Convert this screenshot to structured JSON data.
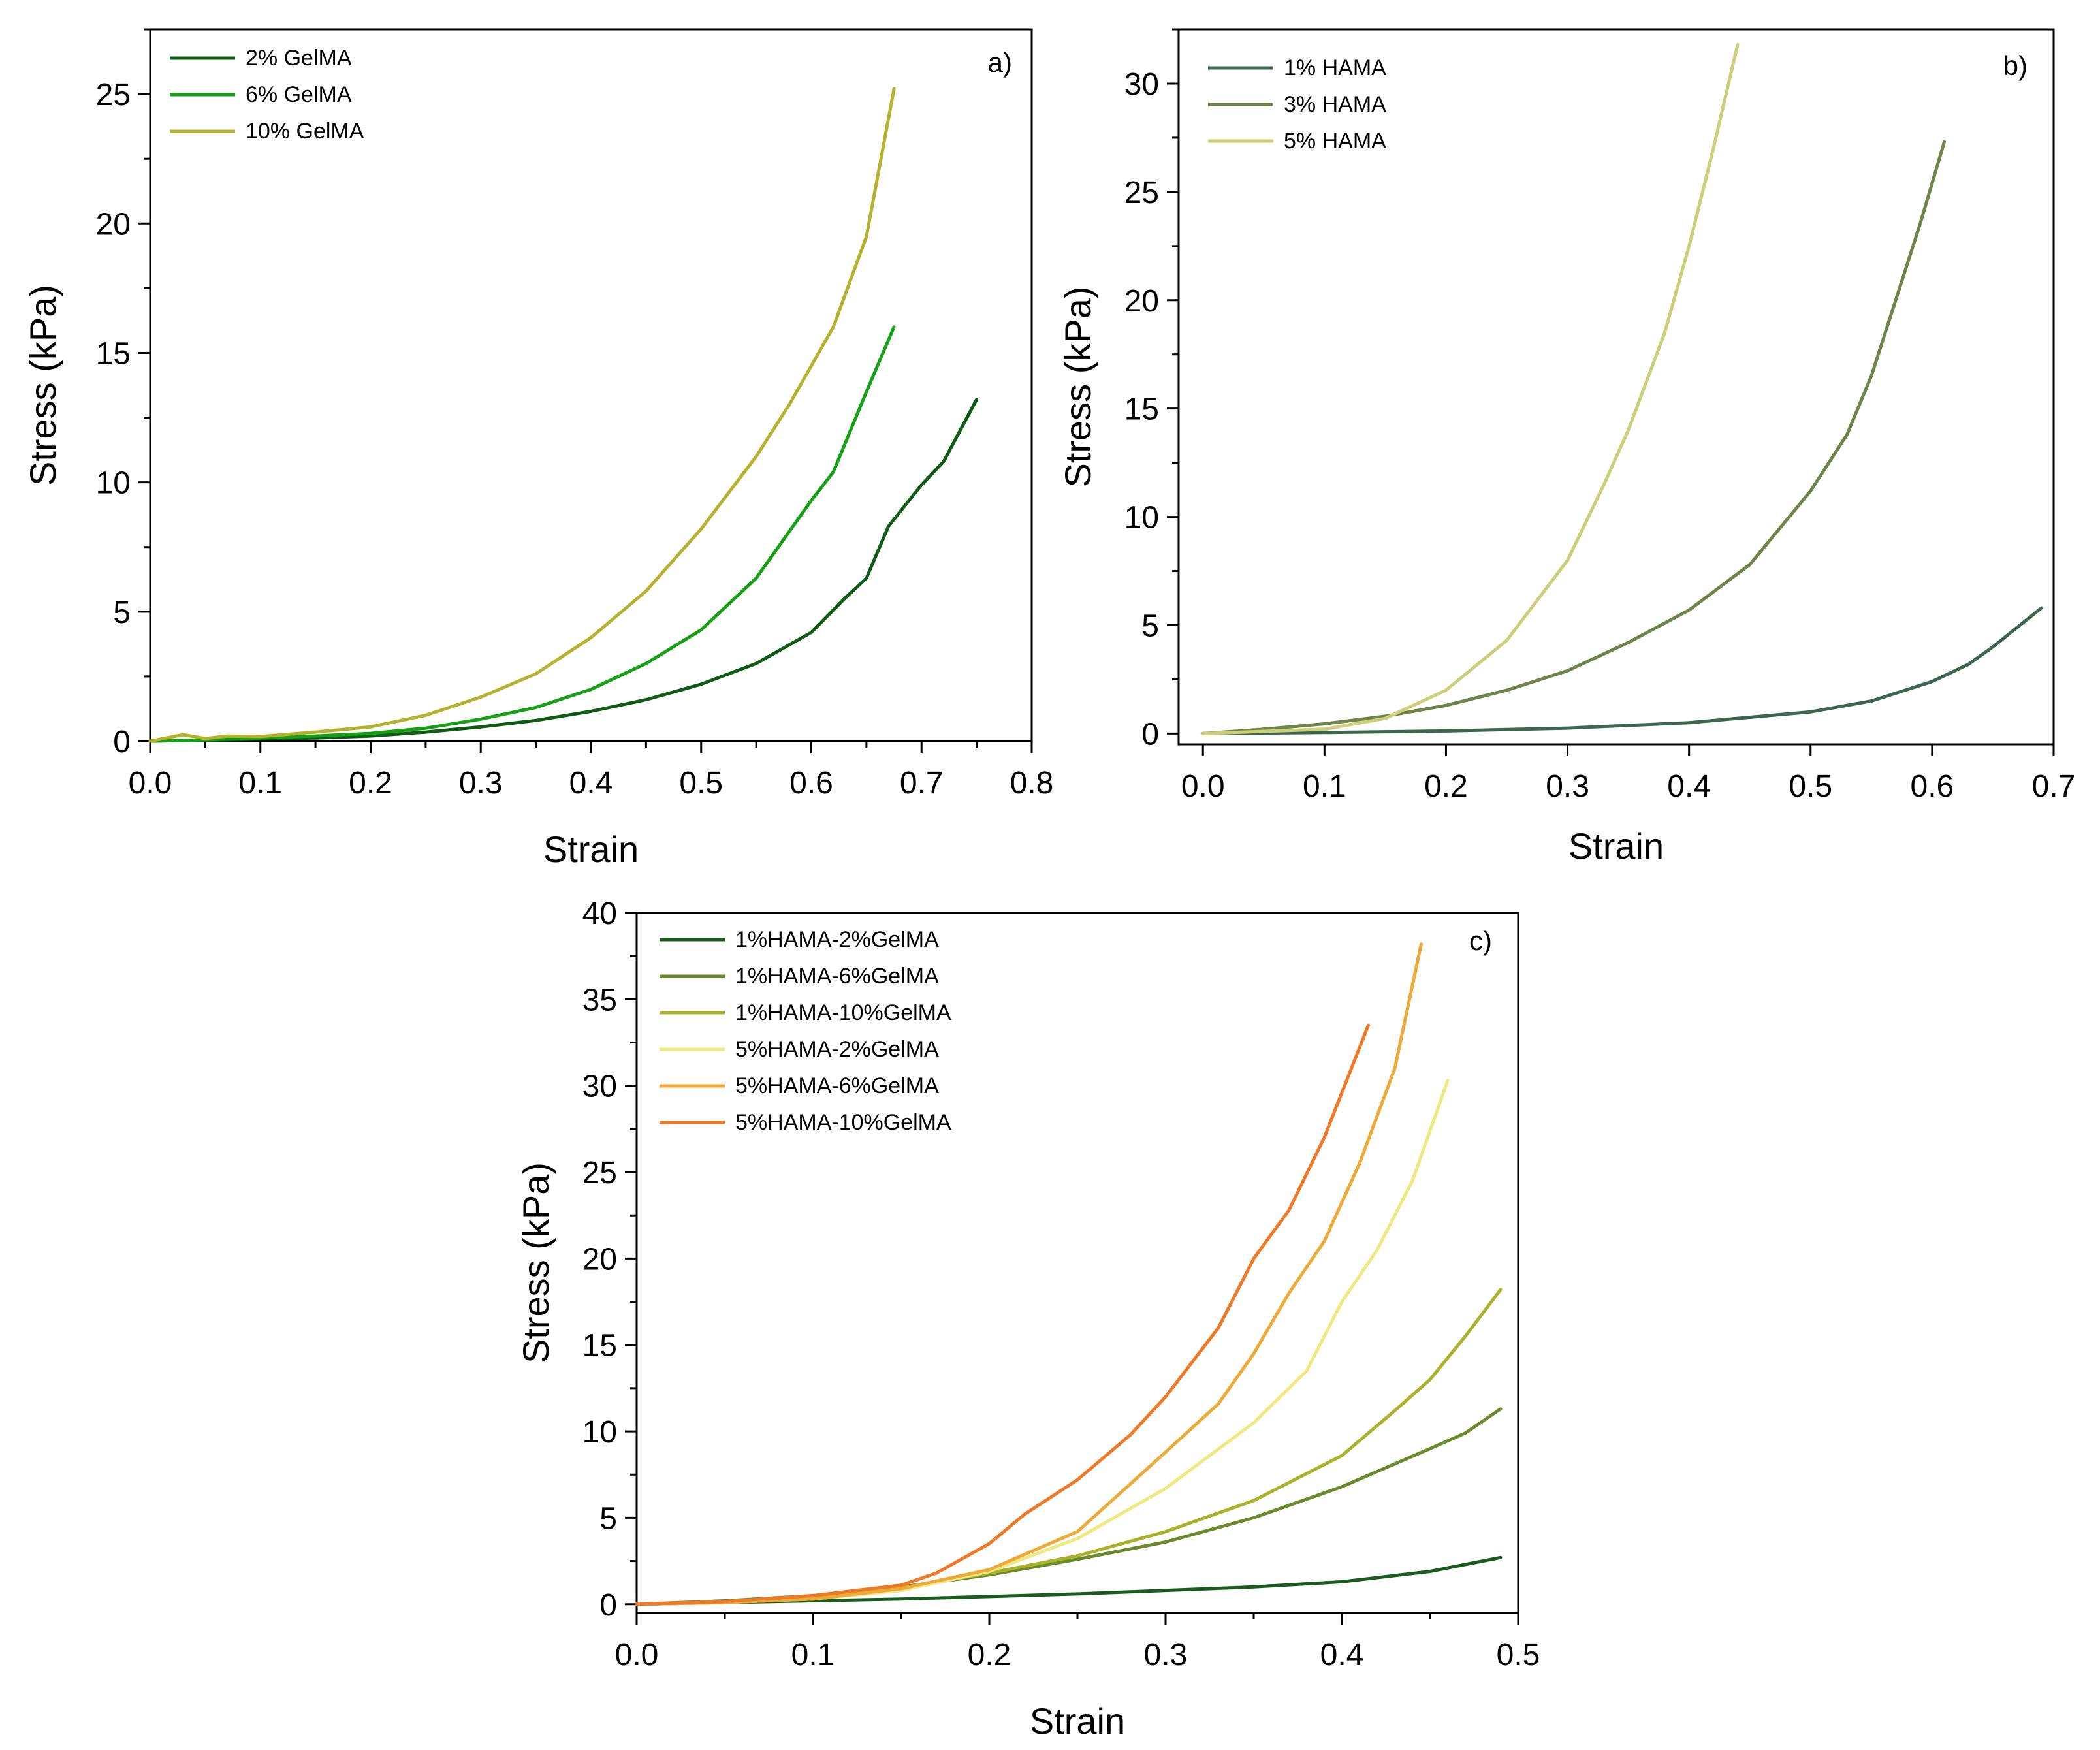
{
  "chart_data": [
    {
      "id": "a",
      "type": "line",
      "panel_label": "a)",
      "xlabel": "Strain",
      "ylabel": "Stress (kPa)",
      "xlim": [
        0,
        0.8
      ],
      "ylim": [
        0,
        27.5
      ],
      "xticks": [
        "0.0",
        "0.1",
        "0.2",
        "0.3",
        "0.4",
        "0.5",
        "0.6",
        "0.7",
        "0.8"
      ],
      "xtick_values": [
        0,
        0.1,
        0.2,
        0.3,
        0.4,
        0.5,
        0.6,
        0.7,
        0.8
      ],
      "yticks": [
        "0",
        "5",
        "10",
        "15",
        "20",
        "25"
      ],
      "ytick_values": [
        0,
        5,
        10,
        15,
        20,
        25
      ],
      "legend_position": "top-left",
      "series": [
        {
          "name": "2% GelMA",
          "color": "#0f5a14",
          "x": [
            0,
            0.05,
            0.1,
            0.15,
            0.2,
            0.25,
            0.3,
            0.35,
            0.4,
            0.45,
            0.5,
            0.55,
            0.6,
            0.63,
            0.65,
            0.67,
            0.7,
            0.72,
            0.73,
            0.75
          ],
          "y": [
            0,
            0.03,
            0.08,
            0.12,
            0.2,
            0.35,
            0.55,
            0.8,
            1.15,
            1.6,
            2.2,
            3.0,
            4.2,
            5.5,
            6.3,
            8.3,
            9.9,
            10.8,
            11.6,
            13.2
          ]
        },
        {
          "name": "6% GelMA",
          "color": "#16a016",
          "x": [
            0,
            0.05,
            0.1,
            0.15,
            0.2,
            0.25,
            0.3,
            0.35,
            0.4,
            0.45,
            0.5,
            0.55,
            0.6,
            0.62,
            0.65,
            0.675
          ],
          "y": [
            0,
            0.05,
            0.12,
            0.2,
            0.3,
            0.5,
            0.85,
            1.3,
            2.0,
            3.0,
            4.3,
            6.3,
            9.3,
            10.4,
            13.5,
            16.0
          ]
        },
        {
          "name": "10% GelMA",
          "color": "#b5b230",
          "x": [
            0,
            0.03,
            0.05,
            0.07,
            0.1,
            0.15,
            0.2,
            0.25,
            0.3,
            0.35,
            0.4,
            0.45,
            0.5,
            0.55,
            0.58,
            0.62,
            0.65,
            0.675
          ],
          "y": [
            0,
            0.25,
            0.1,
            0.2,
            0.18,
            0.35,
            0.55,
            1.0,
            1.7,
            2.6,
            4.0,
            5.8,
            8.2,
            11.0,
            13.0,
            16.0,
            19.5,
            25.2
          ]
        }
      ]
    },
    {
      "id": "b",
      "type": "line",
      "panel_label": "b)",
      "xlabel": "Strain",
      "ylabel": "Stress (kPa)",
      "xlim": [
        -0.02,
        0.7
      ],
      "ylim": [
        -0.5,
        32.5
      ],
      "xticks": [
        "0.0",
        "0.1",
        "0.2",
        "0.3",
        "0.4",
        "0.5",
        "0.6",
        "0.7"
      ],
      "xtick_values": [
        0,
        0.1,
        0.2,
        0.3,
        0.4,
        0.5,
        0.6,
        0.7
      ],
      "yticks": [
        "0",
        "5",
        "10",
        "15",
        "20",
        "25",
        "30"
      ],
      "ytick_values": [
        0,
        5,
        10,
        15,
        20,
        25,
        30
      ],
      "legend_position": "top-left",
      "series": [
        {
          "name": "1% HAMA",
          "color": "#3d6650",
          "x": [
            0,
            0.1,
            0.2,
            0.3,
            0.4,
            0.45,
            0.5,
            0.55,
            0.6,
            0.63,
            0.65,
            0.67,
            0.69
          ],
          "y": [
            0,
            0.05,
            0.12,
            0.25,
            0.5,
            0.75,
            1.0,
            1.5,
            2.4,
            3.2,
            4.0,
            4.9,
            5.8
          ]
        },
        {
          "name": "3% HAMA",
          "color": "#6e8448",
          "x": [
            0,
            0.05,
            0.1,
            0.15,
            0.2,
            0.25,
            0.3,
            0.35,
            0.4,
            0.45,
            0.5,
            0.53,
            0.55,
            0.57,
            0.59,
            0.61
          ],
          "y": [
            0,
            0.2,
            0.45,
            0.8,
            1.3,
            2.0,
            2.9,
            4.2,
            5.7,
            7.8,
            11.2,
            13.8,
            16.5,
            20.0,
            23.5,
            27.3
          ]
        },
        {
          "name": "5% HAMA",
          "color": "#cccf7a",
          "x": [
            0,
            0.1,
            0.15,
            0.2,
            0.25,
            0.3,
            0.33,
            0.35,
            0.38,
            0.4,
            0.42,
            0.44
          ],
          "y": [
            0,
            0.2,
            0.7,
            2.0,
            4.3,
            8.0,
            11.5,
            14.0,
            18.5,
            22.5,
            27.0,
            31.8
          ]
        }
      ]
    },
    {
      "id": "c",
      "type": "line",
      "panel_label": "c)",
      "xlabel": "Strain",
      "ylabel": "Stress (kPa)",
      "xlim": [
        0,
        0.5
      ],
      "ylim": [
        -0.5,
        40
      ],
      "xticks": [
        "0.0",
        "0.1",
        "0.2",
        "0.3",
        "0.4",
        "0.5"
      ],
      "xtick_values": [
        0,
        0.1,
        0.2,
        0.3,
        0.4,
        0.5
      ],
      "yticks": [
        "0",
        "5",
        "10",
        "15",
        "20",
        "25",
        "30",
        "35",
        "40"
      ],
      "ytick_values": [
        0,
        5,
        10,
        15,
        20,
        25,
        30,
        35,
        40
      ],
      "legend_position": "top-left",
      "series": [
        {
          "name": "1%HAMA-2%GelMA",
          "color": "#1a5c1e",
          "x": [
            0,
            0.05,
            0.1,
            0.15,
            0.2,
            0.25,
            0.3,
            0.35,
            0.4,
            0.45,
            0.49
          ],
          "y": [
            0,
            0.1,
            0.2,
            0.3,
            0.45,
            0.6,
            0.8,
            1.0,
            1.3,
            1.9,
            2.7
          ]
        },
        {
          "name": "1%HAMA-6%GelMA",
          "color": "#6b8a2c",
          "x": [
            0,
            0.05,
            0.1,
            0.15,
            0.2,
            0.25,
            0.3,
            0.35,
            0.4,
            0.45,
            0.47,
            0.49
          ],
          "y": [
            0,
            0.2,
            0.5,
            1.0,
            1.7,
            2.6,
            3.6,
            5.0,
            6.8,
            9.0,
            9.9,
            11.3
          ]
        },
        {
          "name": "1%HAMA-10%GelMA",
          "color": "#aab22c",
          "x": [
            0,
            0.05,
            0.1,
            0.15,
            0.2,
            0.25,
            0.3,
            0.35,
            0.4,
            0.43,
            0.45,
            0.47,
            0.49
          ],
          "y": [
            0,
            0.15,
            0.45,
            0.95,
            1.8,
            2.8,
            4.2,
            6.0,
            8.6,
            11.2,
            13.0,
            15.5,
            18.2
          ]
        },
        {
          "name": "5%HAMA-2%GelMA",
          "color": "#eeea80",
          "x": [
            0,
            0.05,
            0.1,
            0.15,
            0.2,
            0.25,
            0.3,
            0.35,
            0.38,
            0.4,
            0.42,
            0.44,
            0.46
          ],
          "y": [
            0,
            0.1,
            0.3,
            0.8,
            1.9,
            3.8,
            6.7,
            10.5,
            13.5,
            17.5,
            20.5,
            24.5,
            30.3
          ]
        },
        {
          "name": "5%HAMA-6%GelMA",
          "color": "#eeaa38",
          "x": [
            0,
            0.05,
            0.1,
            0.15,
            0.2,
            0.25,
            0.3,
            0.33,
            0.35,
            0.37,
            0.39,
            0.41,
            0.43,
            0.445
          ],
          "y": [
            0,
            0.1,
            0.3,
            0.9,
            2.0,
            4.2,
            8.8,
            11.6,
            14.5,
            18.0,
            21.0,
            25.5,
            31.0,
            38.2
          ]
        },
        {
          "name": "5%HAMA-10%GelMA",
          "color": "#ee7a28",
          "x": [
            0,
            0.05,
            0.1,
            0.15,
            0.17,
            0.2,
            0.22,
            0.25,
            0.28,
            0.3,
            0.33,
            0.35,
            0.37,
            0.39,
            0.415
          ],
          "y": [
            0,
            0.15,
            0.5,
            1.1,
            1.8,
            3.5,
            5.2,
            7.2,
            9.8,
            12.0,
            16.0,
            20.0,
            22.8,
            27.0,
            33.5
          ]
        }
      ]
    }
  ]
}
